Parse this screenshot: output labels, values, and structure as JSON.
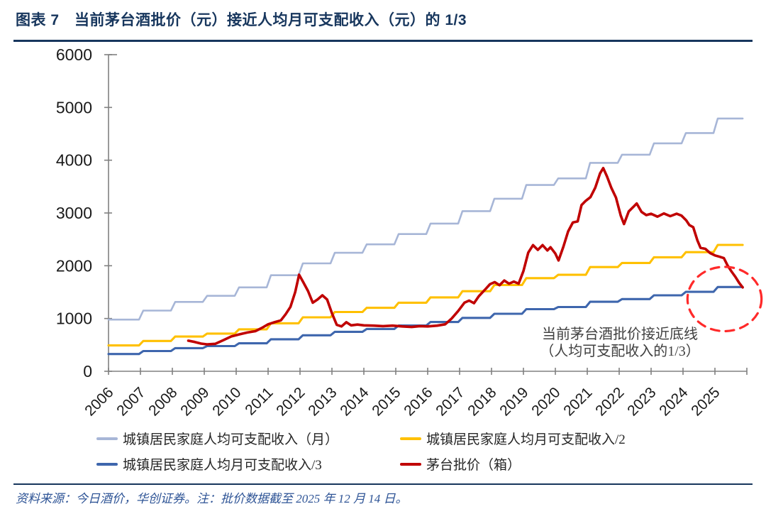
{
  "page": {
    "title": "图表 7　当前茅台酒批价（元）接近人均月可支配收入（元）的 1/3",
    "source_note": "资料来源：今日酒价，华创证券。注：批价数据截至 2025 年 12 月 14 日。"
  },
  "colors": {
    "title_navy": "#17365D",
    "source_text": "#2E5496",
    "axis": "#808080",
    "tick_label": "#1a1a1a",
    "annotation_text": "#404040"
  },
  "chart_data": {
    "type": "line",
    "title": "",
    "xlabel": "",
    "ylabel": "",
    "x_axis": {
      "range": [
        2006,
        2026
      ],
      "tick_step_years": 1,
      "tick_labels": [
        "2006",
        "2007",
        "2008",
        "2009",
        "2010",
        "2011",
        "2012",
        "2013",
        "2014",
        "2015",
        "2016",
        "2017",
        "2018",
        "2019",
        "2020",
        "2021",
        "2022",
        "2023",
        "2024",
        "2025"
      ]
    },
    "y_axis": {
      "range": [
        0,
        6000
      ],
      "ticks": [
        0,
        1000,
        2000,
        3000,
        4000,
        5000,
        6000
      ]
    },
    "grid": false,
    "legend_position": "bottom",
    "data_end_year": 2025.87,
    "step_years": [
      2006,
      2007,
      2008,
      2009,
      2010,
      2011,
      2012,
      2013,
      2014,
      2015,
      2016,
      2017,
      2018,
      2019,
      2020,
      2021,
      2022,
      2023,
      2024,
      2025
    ],
    "series": [
      {
        "name": "城镇居民家庭人均可支配收入（月）",
        "style": "step",
        "color": "#A7B6D7",
        "values": [
          980,
          1150,
          1315,
          1430,
          1590,
          1820,
          2045,
          2245,
          2405,
          2600,
          2800,
          3035,
          3270,
          3530,
          3655,
          3950,
          4105,
          4320,
          4515,
          4790
        ]
      },
      {
        "name": "城镇居民家庭人均月可支配收入/2",
        "style": "step",
        "color": "#FFC000",
        "values": [
          490,
          575,
          658,
          715,
          795,
          910,
          1023,
          1123,
          1203,
          1300,
          1400,
          1518,
          1635,
          1765,
          1828,
          1975,
          2053,
          2160,
          2258,
          2395
        ]
      },
      {
        "name": "城镇居民家庭人均月可支配收入/3",
        "style": "step",
        "color": "#3E66AD",
        "values": [
          327,
          383,
          438,
          477,
          530,
          607,
          682,
          748,
          802,
          867,
          933,
          1012,
          1090,
          1177,
          1218,
          1317,
          1368,
          1440,
          1505,
          1597
        ]
      },
      {
        "name": "茅台批价（箱）",
        "style": "line",
        "color": "#C00000",
        "points": [
          [
            2008.5,
            580
          ],
          [
            2008.7,
            555
          ],
          [
            2008.9,
            525
          ],
          [
            2009.1,
            510
          ],
          [
            2009.35,
            520
          ],
          [
            2009.6,
            590
          ],
          [
            2009.85,
            660
          ],
          [
            2010.1,
            700
          ],
          [
            2010.35,
            735
          ],
          [
            2010.6,
            760
          ],
          [
            2010.8,
            820
          ],
          [
            2011.0,
            890
          ],
          [
            2011.2,
            930
          ],
          [
            2011.4,
            965
          ],
          [
            2011.55,
            1080
          ],
          [
            2011.7,
            1220
          ],
          [
            2011.85,
            1500
          ],
          [
            2011.97,
            1830
          ],
          [
            2012.1,
            1690
          ],
          [
            2012.25,
            1520
          ],
          [
            2012.4,
            1300
          ],
          [
            2012.55,
            1360
          ],
          [
            2012.7,
            1440
          ],
          [
            2012.85,
            1360
          ],
          [
            2013.0,
            1100
          ],
          [
            2013.15,
            880
          ],
          [
            2013.3,
            850
          ],
          [
            2013.45,
            930
          ],
          [
            2013.6,
            870
          ],
          [
            2013.8,
            885
          ],
          [
            2014.0,
            870
          ],
          [
            2014.3,
            865
          ],
          [
            2014.6,
            855
          ],
          [
            2014.9,
            865
          ],
          [
            2015.2,
            850
          ],
          [
            2015.5,
            840
          ],
          [
            2015.75,
            855
          ],
          [
            2016.0,
            850
          ],
          [
            2016.3,
            865
          ],
          [
            2016.55,
            890
          ],
          [
            2016.75,
            1000
          ],
          [
            2016.95,
            1140
          ],
          [
            2017.15,
            1300
          ],
          [
            2017.3,
            1340
          ],
          [
            2017.45,
            1290
          ],
          [
            2017.6,
            1420
          ],
          [
            2017.8,
            1550
          ],
          [
            2017.95,
            1650
          ],
          [
            2018.1,
            1690
          ],
          [
            2018.25,
            1630
          ],
          [
            2018.4,
            1720
          ],
          [
            2018.55,
            1660
          ],
          [
            2018.7,
            1700
          ],
          [
            2018.85,
            1660
          ],
          [
            2019.0,
            1900
          ],
          [
            2019.15,
            2250
          ],
          [
            2019.3,
            2390
          ],
          [
            2019.45,
            2300
          ],
          [
            2019.6,
            2390
          ],
          [
            2019.75,
            2290
          ],
          [
            2019.85,
            2350
          ],
          [
            2020.0,
            2230
          ],
          [
            2020.1,
            2100
          ],
          [
            2020.25,
            2360
          ],
          [
            2020.4,
            2650
          ],
          [
            2020.55,
            2820
          ],
          [
            2020.7,
            2840
          ],
          [
            2020.82,
            3150
          ],
          [
            2020.95,
            3230
          ],
          [
            2021.1,
            3300
          ],
          [
            2021.25,
            3480
          ],
          [
            2021.4,
            3750
          ],
          [
            2021.5,
            3850
          ],
          [
            2021.62,
            3690
          ],
          [
            2021.75,
            3480
          ],
          [
            2021.9,
            3290
          ],
          [
            2022.05,
            2950
          ],
          [
            2022.15,
            2790
          ],
          [
            2022.3,
            3030
          ],
          [
            2022.45,
            3120
          ],
          [
            2022.55,
            3180
          ],
          [
            2022.7,
            3020
          ],
          [
            2022.85,
            2960
          ],
          [
            2023.0,
            2985
          ],
          [
            2023.2,
            2930
          ],
          [
            2023.4,
            2990
          ],
          [
            2023.6,
            2940
          ],
          [
            2023.8,
            2985
          ],
          [
            2023.95,
            2950
          ],
          [
            2024.1,
            2860
          ],
          [
            2024.2,
            2770
          ],
          [
            2024.32,
            2730
          ],
          [
            2024.45,
            2480
          ],
          [
            2024.55,
            2340
          ],
          [
            2024.7,
            2320
          ],
          [
            2024.85,
            2240
          ],
          [
            2025.0,
            2195
          ],
          [
            2025.15,
            2170
          ],
          [
            2025.28,
            2145
          ],
          [
            2025.4,
            2000
          ],
          [
            2025.52,
            1890
          ],
          [
            2025.64,
            1790
          ],
          [
            2025.76,
            1675
          ],
          [
            2025.87,
            1590
          ]
        ]
      }
    ],
    "annotation": {
      "line1": "当前茅台酒批价接近底线",
      "line2": "（人均可支配收入的1/3）"
    },
    "highlight_ellipse": {
      "center_year": 2025.3,
      "center_value": 1370,
      "rx_years": 1.16,
      "ry_value": 610,
      "color": "#FF2A2A"
    }
  }
}
